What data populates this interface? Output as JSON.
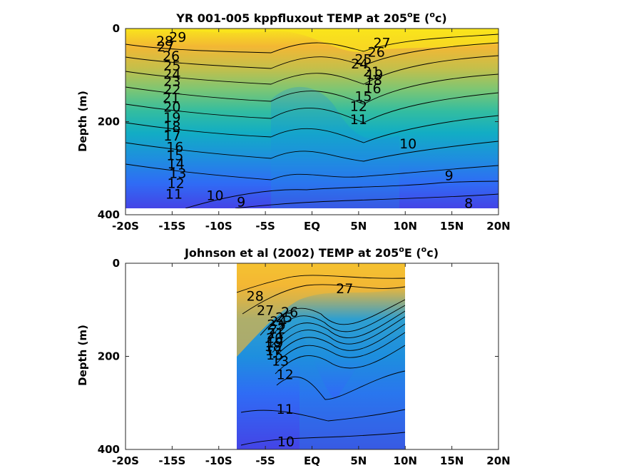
{
  "colors": {
    "colormap": [
      "#3e26a8",
      "#4444e6",
      "#2f6cf5",
      "#1e8fde",
      "#12adc4",
      "#33bda0",
      "#7cc674",
      "#c5bf4a",
      "#f3b734",
      "#f9e51b"
    ],
    "line": "#000000",
    "axes": "#262626"
  },
  "chart_data": [
    {
      "type": "heatmap",
      "title": {
        "prefix": "YR 001-005 kppfluxout TEMP at 205",
        "deg": "o",
        "mid": "E (",
        "unit": "o",
        "suffix": "c)"
      },
      "ylabel": "Depth (m)",
      "xlabel": "",
      "x_range": [
        -20,
        20
      ],
      "y_range": [
        0,
        400
      ],
      "y_reversed": true,
      "x_ticks": [
        -20,
        -15,
        -10,
        -5,
        0,
        5,
        10,
        15,
        20
      ],
      "x_tick_labels": [
        "-20S",
        "-15S",
        "-10S",
        "-5S",
        "EQ",
        "5N",
        "10N",
        "15N",
        "20N"
      ],
      "y_ticks": [
        0,
        200,
        400
      ],
      "y_tick_labels": [
        "0",
        "200",
        "400"
      ],
      "data_extent": {
        "x": [
          -20,
          20
        ],
        "y": [
          0,
          385
        ]
      },
      "grid": false,
      "legend": "none",
      "contour_levels": [
        8,
        9,
        10,
        11,
        12,
        13,
        14,
        15,
        16,
        17,
        18,
        19,
        20,
        21,
        22,
        23,
        24,
        25,
        26,
        27,
        28,
        29
      ],
      "contour_labels": [
        {
          "text": "29",
          "x": -14.4,
          "y": 18
        },
        {
          "text": "28",
          "x": -15.8,
          "y": 26
        },
        {
          "text": "27",
          "x": -15.7,
          "y": 38
        },
        {
          "text": "26",
          "x": -15.1,
          "y": 58
        },
        {
          "text": "25",
          "x": -15.0,
          "y": 79
        },
        {
          "text": "24",
          "x": -15.0,
          "y": 97
        },
        {
          "text": "23",
          "x": -15.0,
          "y": 113
        },
        {
          "text": "22",
          "x": -15.0,
          "y": 130
        },
        {
          "text": "21",
          "x": -15.1,
          "y": 148
        },
        {
          "text": "20",
          "x": -15.0,
          "y": 168
        },
        {
          "text": "19",
          "x": -15.0,
          "y": 190
        },
        {
          "text": "18",
          "x": -15.0,
          "y": 210
        },
        {
          "text": "17",
          "x": -15.0,
          "y": 230
        },
        {
          "text": "16",
          "x": -14.7,
          "y": 254
        },
        {
          "text": "15",
          "x": -14.7,
          "y": 272
        },
        {
          "text": "14",
          "x": -14.6,
          "y": 290
        },
        {
          "text": "13",
          "x": -14.4,
          "y": 310
        },
        {
          "text": "12",
          "x": -14.6,
          "y": 332
        },
        {
          "text": "11",
          "x": -14.8,
          "y": 355
        },
        {
          "text": "10",
          "x": -10.4,
          "y": 358
        },
        {
          "text": "9",
          "x": -7.6,
          "y": 372
        },
        {
          "text": "10",
          "x": 10.3,
          "y": 247
        },
        {
          "text": "9",
          "x": 14.7,
          "y": 315
        },
        {
          "text": "8",
          "x": 16.8,
          "y": 375
        },
        {
          "text": "27",
          "x": 7.5,
          "y": 30
        },
        {
          "text": "26",
          "x": 6.9,
          "y": 50
        },
        {
          "text": "25",
          "x": 5.5,
          "y": 65
        },
        {
          "text": "24",
          "x": 5.1,
          "y": 75
        },
        {
          "text": "21",
          "x": 6.4,
          "y": 92
        },
        {
          "text": "19",
          "x": 6.7,
          "y": 98
        },
        {
          "text": "18",
          "x": 6.6,
          "y": 110
        },
        {
          "text": "16",
          "x": 6.5,
          "y": 128
        },
        {
          "text": "15",
          "x": 5.5,
          "y": 145
        },
        {
          "text": "12",
          "x": 5.0,
          "y": 166
        },
        {
          "text": "11",
          "x": 5.0,
          "y": 195
        }
      ]
    },
    {
      "type": "heatmap",
      "title": {
        "prefix": "Johnson et al (2002) TEMP at 205",
        "deg": "o",
        "mid": "E (",
        "unit": "o",
        "suffix": "c)"
      },
      "ylabel": "Depth (m)",
      "xlabel": "",
      "x_range": [
        -20,
        20
      ],
      "y_range": [
        0,
        400
      ],
      "y_reversed": true,
      "x_ticks": [
        -20,
        -15,
        -10,
        -5,
        0,
        5,
        10,
        15,
        20
      ],
      "x_tick_labels": [
        "-20S",
        "-15S",
        "-10S",
        "-5S",
        "EQ",
        "5N",
        "10N",
        "15N",
        "20N"
      ],
      "y_ticks": [
        0,
        200,
        400
      ],
      "y_tick_labels": [
        "0",
        "200",
        "400"
      ],
      "data_extent": {
        "x": [
          -8,
          10
        ],
        "y": [
          0,
          400
        ]
      },
      "grid": false,
      "legend": "none",
      "contour_levels": [
        10,
        11,
        12,
        13,
        14,
        15,
        16,
        17,
        18,
        19,
        20,
        21,
        22,
        23,
        24,
        25,
        26,
        27,
        28
      ],
      "contour_labels": [
        {
          "text": "28",
          "x": -6.1,
          "y": 70
        },
        {
          "text": "27",
          "x": -5.0,
          "y": 100
        },
        {
          "text": "26",
          "x": -2.4,
          "y": 104
        },
        {
          "text": "25",
          "x": -3.0,
          "y": 116
        },
        {
          "text": "24",
          "x": -3.6,
          "y": 124
        },
        {
          "text": "23",
          "x": -3.9,
          "y": 131
        },
        {
          "text": "22",
          "x": -3.7,
          "y": 140
        },
        {
          "text": "21",
          "x": -3.9,
          "y": 150
        },
        {
          "text": "20",
          "x": -4.0,
          "y": 160
        },
        {
          "text": "19",
          "x": -4.0,
          "y": 170
        },
        {
          "text": "18",
          "x": -4.2,
          "y": 178
        },
        {
          "text": "17",
          "x": -4.1,
          "y": 187
        },
        {
          "text": "15",
          "x": -4.0,
          "y": 196
        },
        {
          "text": "13",
          "x": -3.4,
          "y": 209
        },
        {
          "text": "12",
          "x": -2.9,
          "y": 238
        },
        {
          "text": "11",
          "x": -2.9,
          "y": 313
        },
        {
          "text": "10",
          "x": -2.8,
          "y": 382
        },
        {
          "text": "27",
          "x": 3.5,
          "y": 54
        }
      ]
    }
  ],
  "panels": [
    {
      "title": {
        "prefix": "YR 001-005 kppfluxout TEMP at 205",
        "deg": "o",
        "mid": "E (",
        "unit": "o",
        "suffix": "c)"
      },
      "ylabel": "Depth (m)"
    },
    {
      "title": {
        "prefix": "Johnson et al (2002) TEMP at 205",
        "deg": "o",
        "mid": "E (",
        "unit": "o",
        "suffix": "c)"
      },
      "ylabel": "Depth (m)"
    }
  ]
}
